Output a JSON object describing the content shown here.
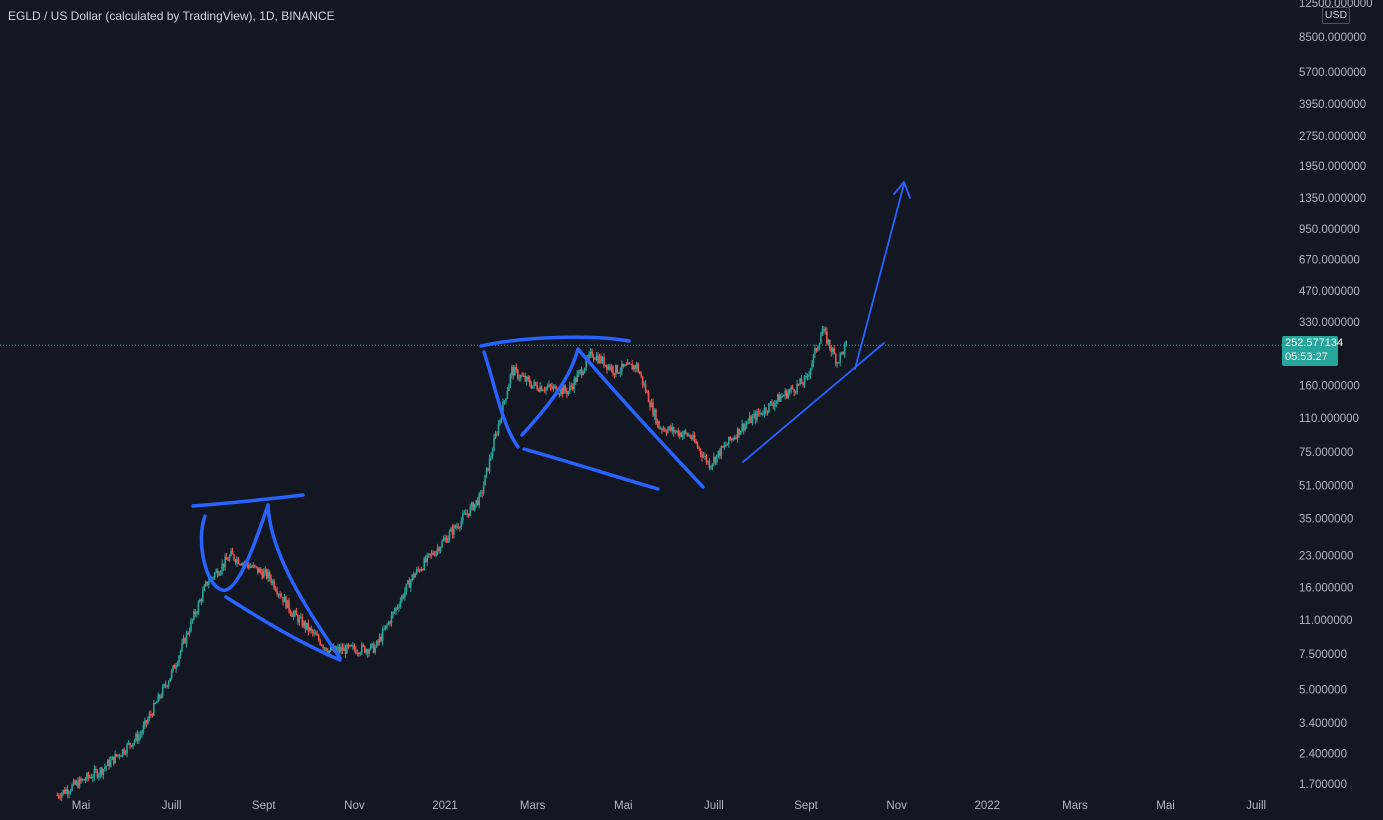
{
  "header": {
    "title": "EGLD / US Dollar (calculated by TradingView), 1D, BINANCE"
  },
  "price_axis": {
    "currency": "USD",
    "last_price": "252.577134",
    "countdown": "05:53:27"
  },
  "colors": {
    "background": "#131722",
    "bull": "#26a69a",
    "bear": "#ef5350",
    "drawing": "#2962ff",
    "text": "#b2b5be"
  },
  "chart_data": {
    "type": "candlestick",
    "scale": "log",
    "title": "EGLD / US Dollar (calculated by TradingView), 1D, BINANCE",
    "y_ticks": [
      "12500.000000",
      "8500.000000",
      "5700.000000",
      "3950.000000",
      "2750.000000",
      "1950.000000",
      "1350.000000",
      "950.000000",
      "670.000000",
      "470.000000",
      "330.000000",
      "160.000000",
      "110.000000",
      "75.000000",
      "51.000000",
      "35.000000",
      "23.000000",
      "16.000000",
      "11.000000",
      "7.500000",
      "5.000000",
      "3.400000",
      "2.400000",
      "1.700000"
    ],
    "x_ticks": [
      "Mai",
      "Juill",
      "Sept",
      "Nov",
      "2021",
      "Mars",
      "Mai",
      "Juill",
      "Sept",
      "Nov",
      "2022",
      "Mars",
      "Mai",
      "Juill"
    ],
    "last_price": 252.577134,
    "price_path": [
      {
        "date": "2020-04-15",
        "price": 1.5
      },
      {
        "date": "2020-05-15",
        "price": 2.0
      },
      {
        "date": "2020-06-10",
        "price": 3.0
      },
      {
        "date": "2020-07-01",
        "price": 6.0
      },
      {
        "date": "2020-07-25",
        "price": 17.0
      },
      {
        "date": "2020-08-10",
        "price": 23.0
      },
      {
        "date": "2020-09-05",
        "price": 18.0
      },
      {
        "date": "2020-09-20",
        "price": 12.0
      },
      {
        "date": "2020-10-15",
        "price": 7.8
      },
      {
        "date": "2020-11-15",
        "price": 8.0
      },
      {
        "date": "2020-12-10",
        "price": 18.0
      },
      {
        "date": "2021-01-10",
        "price": 33.0
      },
      {
        "date": "2021-01-25",
        "price": 45.0
      },
      {
        "date": "2021-02-15",
        "price": 190.0
      },
      {
        "date": "2021-03-01",
        "price": 160.0
      },
      {
        "date": "2021-03-25",
        "price": 150.0
      },
      {
        "date": "2021-04-10",
        "price": 230.0
      },
      {
        "date": "2021-04-25",
        "price": 190.0
      },
      {
        "date": "2021-05-10",
        "price": 200.0
      },
      {
        "date": "2021-05-25",
        "price": 100.0
      },
      {
        "date": "2021-06-15",
        "price": 90.0
      },
      {
        "date": "2021-06-28",
        "price": 65.0
      },
      {
        "date": "2021-07-20",
        "price": 100.0
      },
      {
        "date": "2021-08-15",
        "price": 140.0
      },
      {
        "date": "2021-09-01",
        "price": 170.0
      },
      {
        "date": "2021-09-12",
        "price": 300.0
      },
      {
        "date": "2021-09-22",
        "price": 210.0
      },
      {
        "date": "2021-09-28",
        "price": 252.58
      }
    ]
  }
}
